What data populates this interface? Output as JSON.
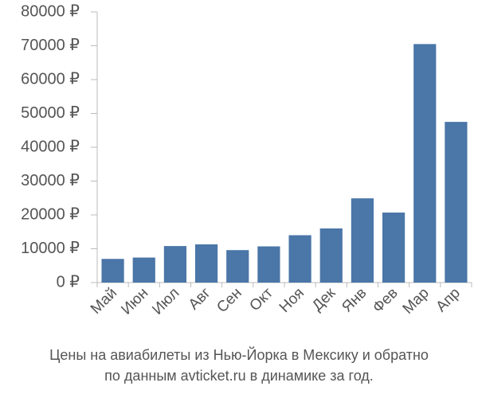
{
  "chart_data": {
    "type": "bar",
    "title": "Цены на авиабилеты из Нью-Йорка в Мексику и обратно",
    "subtitle": "по данным avticket.ru в динамике за год.",
    "categories": [
      "Май",
      "Июн",
      "Июл",
      "Авг",
      "Сен",
      "Окт",
      "Ноя",
      "Дек",
      "Янв",
      "Фев",
      "Мар",
      "Апр"
    ],
    "values": [
      7000,
      7400,
      10800,
      11300,
      9600,
      10700,
      14000,
      16000,
      24900,
      20700,
      70500,
      47500
    ],
    "color": "#4a76a8",
    "ylim": [
      0,
      80000
    ],
    "yticks": [
      {
        "value": 0,
        "label": "0 ₽"
      },
      {
        "value": 10000,
        "label": "10000 ₽"
      },
      {
        "value": 20000,
        "label": "20000 ₽"
      },
      {
        "value": 30000,
        "label": "30000 ₽"
      },
      {
        "value": 40000,
        "label": "40000 ₽"
      },
      {
        "value": 50000,
        "label": "50000 ₽"
      },
      {
        "value": 60000,
        "label": "60000 ₽"
      },
      {
        "value": 70000,
        "label": "70000 ₽"
      },
      {
        "value": 80000,
        "label": "80000 ₽"
      }
    ],
    "grid": false
  }
}
